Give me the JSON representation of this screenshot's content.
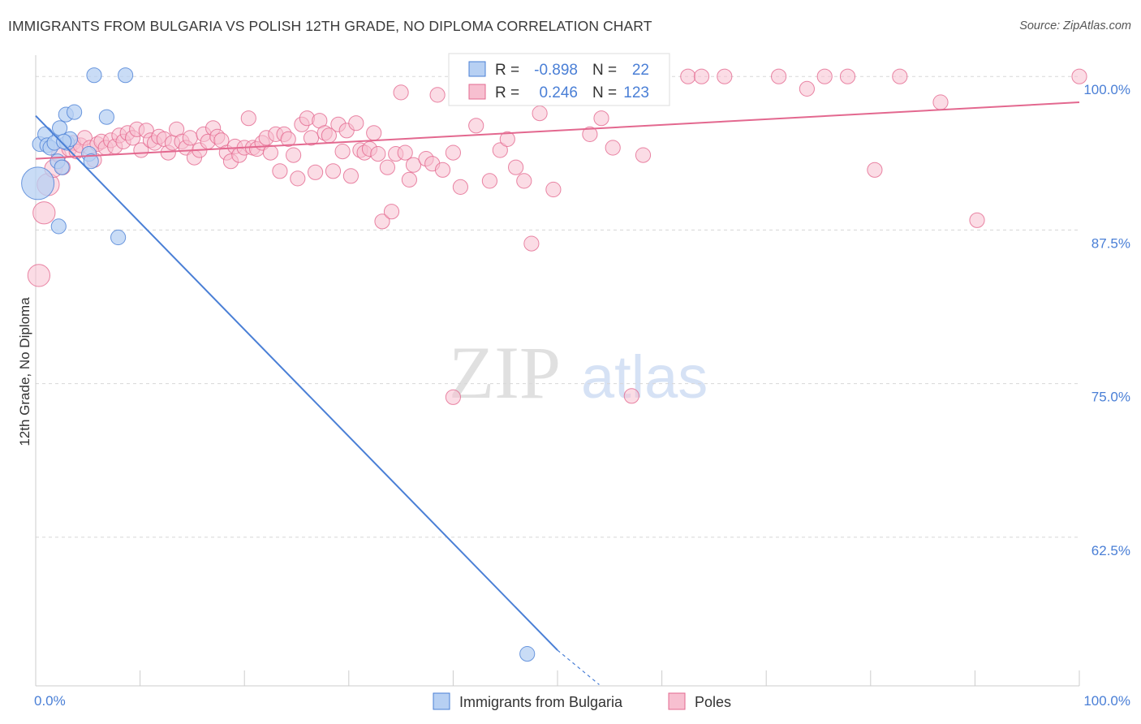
{
  "title": "IMMIGRANTS FROM BULGARIA VS POLISH 12TH GRADE, NO DIPLOMA CORRELATION CHART",
  "source": "Source: ZipAtlas.com",
  "watermark": {
    "zip": "ZIP",
    "atlas": "atlas"
  },
  "colors": {
    "blue": "#4a7fd6",
    "blue_fill": "#b7d0f3",
    "pink": "#e3688f",
    "pink_fill": "#f7bfd0",
    "axis_label": "#4a7fd6",
    "grid": "#d8d8d8"
  },
  "stats_legend": {
    "r_label": "R =",
    "n_label": "N =",
    "rows": [
      {
        "series": "Immigrants from Bulgaria",
        "r": "-0.898",
        "n": "22"
      },
      {
        "series": "Poles",
        "r": "0.246",
        "n": "123"
      }
    ]
  },
  "chart_data": {
    "type": "scatter",
    "title": "IMMIGRANTS FROM BULGARIA VS POLISH 12TH GRADE, NO DIPLOMA CORRELATION CHART",
    "xlabel": "",
    "ylabel": "12th Grade, No Diploma",
    "xlim": [
      0,
      100
    ],
    "ylim": [
      50.4,
      101.6
    ],
    "x_tick_labels": [
      "0.0%",
      "100.0%"
    ],
    "y_ticks": [
      100,
      87.5,
      75,
      62.5
    ],
    "y_tick_labels": [
      "100.0%",
      "87.5%",
      "75.0%",
      "62.5%"
    ],
    "grid": "horizontal dashed",
    "legend_position": "bottom-center",
    "series": [
      {
        "name": "Immigrants from Bulgaria",
        "color": "#4a7fd6",
        "points": [
          [
            0.2,
            91.3,
            22
          ],
          [
            0.4,
            94.5,
            10
          ],
          [
            0.9,
            95.3,
            10
          ],
          [
            1.1,
            94.4,
            10
          ],
          [
            1.4,
            94.2,
            10
          ],
          [
            1.8,
            94.6,
            10
          ],
          [
            2.1,
            93.1,
            10
          ],
          [
            2.2,
            87.8,
            10
          ],
          [
            2.3,
            95.8,
            10
          ],
          [
            2.5,
            92.6,
            10
          ],
          [
            2.9,
            96.9,
            10
          ],
          [
            3.0,
            94.6,
            10
          ],
          [
            3.3,
            94.9,
            10
          ],
          [
            3.7,
            97.1,
            10
          ],
          [
            5.1,
            93.7,
            10
          ],
          [
            5.3,
            93.1,
            10
          ],
          [
            5.6,
            100.1,
            10
          ],
          [
            6.8,
            96.7,
            10
          ],
          [
            7.9,
            86.9,
            10
          ],
          [
            8.6,
            100.1,
            10
          ],
          [
            47.1,
            53.0,
            10
          ],
          [
            2.7,
            94.7,
            10
          ]
        ],
        "trend": {
          "x": [
            0,
            50
          ],
          "y": [
            96.8,
            53.3
          ]
        },
        "trend_extension": {
          "x": [
            50,
            54
          ],
          "y": [
            53.3,
            50.5
          ]
        }
      },
      {
        "name": "Poles",
        "color": "#e3688f",
        "points": [
          [
            0.3,
            83.8,
            15
          ],
          [
            0.8,
            88.9,
            15
          ],
          [
            1.2,
            91.2,
            15
          ],
          [
            1.7,
            92.5,
            12
          ],
          [
            2.2,
            93.6,
            10
          ],
          [
            2.6,
            92.6,
            10
          ],
          [
            3.2,
            94.1,
            10
          ],
          [
            3.6,
            94.6,
            10
          ],
          [
            3.9,
            93.9,
            10
          ],
          [
            4.3,
            94.4,
            10
          ],
          [
            4.7,
            95.0,
            10
          ],
          [
            5.2,
            94.2,
            10
          ],
          [
            5.6,
            93.2,
            10
          ],
          [
            5.9,
            94.5,
            10
          ],
          [
            6.3,
            94.7,
            10
          ],
          [
            6.7,
            94.2,
            10
          ],
          [
            7.2,
            94.8,
            10
          ],
          [
            7.6,
            94.3,
            10
          ],
          [
            8.0,
            95.2,
            10
          ],
          [
            8.4,
            94.7,
            10
          ],
          [
            8.8,
            95.4,
            10
          ],
          [
            9.3,
            95.0,
            10
          ],
          [
            9.7,
            95.7,
            10
          ],
          [
            10.1,
            94.0,
            10
          ],
          [
            10.6,
            95.6,
            10
          ],
          [
            11.0,
            94.8,
            10
          ],
          [
            11.4,
            94.6,
            10
          ],
          [
            11.8,
            95.1,
            10
          ],
          [
            12.3,
            94.9,
            10
          ],
          [
            12.7,
            93.8,
            10
          ],
          [
            13.1,
            94.6,
            10
          ],
          [
            13.5,
            95.7,
            10
          ],
          [
            14.0,
            94.7,
            10
          ],
          [
            14.4,
            94.2,
            10
          ],
          [
            14.8,
            95.0,
            10
          ],
          [
            15.2,
            93.4,
            10
          ],
          [
            15.7,
            94.0,
            10
          ],
          [
            16.1,
            95.3,
            10
          ],
          [
            16.5,
            94.7,
            10
          ],
          [
            17.0,
            95.8,
            10
          ],
          [
            17.4,
            95.1,
            10
          ],
          [
            17.8,
            94.8,
            10
          ],
          [
            18.3,
            93.8,
            10
          ],
          [
            18.7,
            93.1,
            10
          ],
          [
            19.1,
            94.3,
            10
          ],
          [
            19.5,
            93.6,
            10
          ],
          [
            20.0,
            94.2,
            10
          ],
          [
            20.4,
            96.6,
            10
          ],
          [
            20.8,
            94.2,
            10
          ],
          [
            21.2,
            94.1,
            10
          ],
          [
            21.7,
            94.6,
            10
          ],
          [
            22.1,
            95.0,
            10
          ],
          [
            22.5,
            93.8,
            10
          ],
          [
            23.0,
            95.3,
            10
          ],
          [
            23.4,
            92.3,
            10
          ],
          [
            23.8,
            95.3,
            10
          ],
          [
            24.2,
            94.9,
            10
          ],
          [
            24.7,
            93.6,
            10
          ],
          [
            25.1,
            91.7,
            10
          ],
          [
            25.5,
            96.1,
            10
          ],
          [
            26.0,
            96.6,
            10
          ],
          [
            26.4,
            95.0,
            10
          ],
          [
            26.8,
            92.2,
            10
          ],
          [
            27.2,
            96.4,
            10
          ],
          [
            27.7,
            95.4,
            10
          ],
          [
            28.1,
            95.2,
            10
          ],
          [
            28.5,
            92.3,
            10
          ],
          [
            29.0,
            96.1,
            10
          ],
          [
            29.4,
            93.9,
            10
          ],
          [
            29.8,
            95.6,
            10
          ],
          [
            30.2,
            91.9,
            10
          ],
          [
            30.7,
            96.2,
            10
          ],
          [
            31.1,
            94.0,
            10
          ],
          [
            31.5,
            93.8,
            10
          ],
          [
            32.0,
            94.1,
            10
          ],
          [
            32.4,
            95.4,
            10
          ],
          [
            32.8,
            93.7,
            10
          ],
          [
            33.2,
            88.2,
            10
          ],
          [
            33.7,
            92.6,
            10
          ],
          [
            34.1,
            89.0,
            10
          ],
          [
            34.5,
            93.7,
            10
          ],
          [
            35.0,
            98.7,
            10
          ],
          [
            35.4,
            93.8,
            10
          ],
          [
            35.8,
            91.6,
            10
          ],
          [
            36.2,
            92.8,
            10
          ],
          [
            37.4,
            93.3,
            10
          ],
          [
            38.0,
            92.9,
            10
          ],
          [
            38.5,
            98.5,
            10
          ],
          [
            39.0,
            92.4,
            10
          ],
          [
            40.0,
            93.8,
            10
          ],
          [
            40.7,
            91.0,
            10
          ],
          [
            41.5,
            100.0,
            10
          ],
          [
            42.2,
            96.0,
            10
          ],
          [
            43.5,
            91.5,
            10
          ],
          [
            44.5,
            94.0,
            10
          ],
          [
            45.2,
            94.9,
            10
          ],
          [
            46.0,
            92.6,
            10
          ],
          [
            46.8,
            91.5,
            10
          ],
          [
            47.5,
            86.4,
            10
          ],
          [
            48.3,
            97.0,
            10
          ],
          [
            49.6,
            90.8,
            10
          ],
          [
            53.1,
            95.3,
            10
          ],
          [
            54.2,
            96.6,
            10
          ],
          [
            55.3,
            94.2,
            10
          ],
          [
            57.1,
            74.0,
            10
          ],
          [
            58.2,
            93.6,
            10
          ],
          [
            62.5,
            100.0,
            10
          ],
          [
            63.8,
            100.0,
            10
          ],
          [
            66.0,
            100.0,
            10
          ],
          [
            71.2,
            100.0,
            10
          ],
          [
            73.9,
            99.0,
            10
          ],
          [
            75.6,
            100.0,
            10
          ],
          [
            77.8,
            100.0,
            10
          ],
          [
            80.4,
            92.4,
            10
          ],
          [
            82.8,
            100.0,
            10
          ],
          [
            86.7,
            97.9,
            10
          ],
          [
            90.2,
            88.3,
            10
          ],
          [
            40.0,
            73.9,
            10
          ],
          [
            100.0,
            100.0,
            10
          ]
        ],
        "trend": {
          "x": [
            0,
            100
          ],
          "y": [
            93.3,
            97.9
          ]
        }
      }
    ]
  },
  "bottom_legend": [
    {
      "label": "Immigrants from Bulgaria"
    },
    {
      "label": "Poles"
    }
  ]
}
